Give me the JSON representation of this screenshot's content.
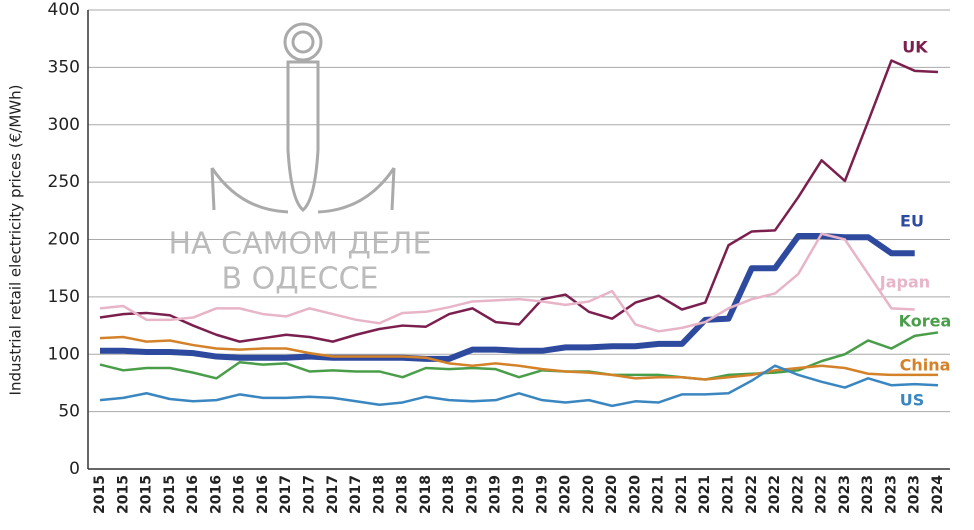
{
  "chart_data": {
    "type": "line",
    "y_axis_label": "Industrial retail electricity prices (€/MWh)",
    "watermark": [
      "НА САМОМ ДЕЛЕ",
      "В ОДЕССЕ"
    ],
    "categories": [
      "2015",
      "2015",
      "2015",
      "2015",
      "2016",
      "2016",
      "2016",
      "2016",
      "2017",
      "2017",
      "2017",
      "2017",
      "2018",
      "2018",
      "2018",
      "2018",
      "2019",
      "2019",
      "2019",
      "2019",
      "2020",
      "2020",
      "2020",
      "2020",
      "2021",
      "2021",
      "2021",
      "2021",
      "2022",
      "2022",
      "2022",
      "2022",
      "2023",
      "2023",
      "2023",
      "2023",
      "2024"
    ],
    "ylim": [
      0,
      400
    ],
    "yticks": [
      0,
      50,
      100,
      150,
      200,
      250,
      300,
      350,
      400
    ],
    "grid": true,
    "series": [
      {
        "name": "UK",
        "color": "#7b1f4e",
        "values": [
          132,
          135,
          136,
          134,
          125,
          117,
          111,
          114,
          117,
          115,
          111,
          117,
          122,
          125,
          124,
          135,
          140,
          128,
          126,
          148,
          152,
          137,
          131,
          145,
          151,
          139,
          145,
          195,
          207,
          208,
          237,
          269,
          251,
          303,
          356,
          347,
          346
        ]
      },
      {
        "name": "EU",
        "color": "#2e4a9e",
        "highlight": true,
        "values": [
          103,
          103,
          102,
          102,
          101,
          98,
          97,
          97,
          97,
          98,
          97,
          97,
          97,
          97,
          96,
          96,
          104,
          104,
          103,
          103,
          106,
          106,
          107,
          107,
          109,
          109,
          130,
          131,
          175,
          175,
          203,
          203,
          202,
          202,
          188,
          188,
          null
        ]
      },
      {
        "name": "Japan",
        "color": "#e8b4c8",
        "values": [
          140,
          142,
          130,
          130,
          132,
          140,
          140,
          135,
          133,
          140,
          135,
          130,
          127,
          136,
          137,
          141,
          146,
          147,
          148,
          146,
          143,
          146,
          155,
          126,
          120,
          123,
          128,
          140,
          148,
          153,
          170,
          205,
          200,
          170,
          140,
          139,
          null
        ]
      },
      {
        "name": "Korea",
        "color": "#4a9e4a",
        "values": [
          91,
          86,
          88,
          88,
          84,
          79,
          93,
          91,
          92,
          85,
          86,
          85,
          85,
          80,
          88,
          87,
          88,
          87,
          80,
          86,
          85,
          85,
          82,
          82,
          82,
          80,
          78,
          82,
          83,
          84,
          86,
          94,
          100,
          112,
          105,
          116,
          119
        ]
      },
      {
        "name": "China",
        "color": "#d4822a",
        "values": [
          114,
          115,
          111,
          112,
          108,
          105,
          104,
          105,
          105,
          101,
          98,
          98,
          98,
          98,
          97,
          92,
          90,
          92,
          90,
          87,
          85,
          84,
          82,
          79,
          80,
          80,
          78,
          80,
          82,
          86,
          88,
          90,
          88,
          83,
          82,
          82,
          82
        ]
      },
      {
        "name": "US",
        "color": "#3a86c0",
        "values": [
          60,
          62,
          66,
          61,
          59,
          60,
          65,
          62,
          62,
          63,
          62,
          59,
          56,
          58,
          63,
          60,
          59,
          60,
          66,
          60,
          58,
          60,
          55,
          59,
          58,
          65,
          65,
          66,
          77,
          90,
          82,
          76,
          71,
          79,
          73,
          74,
          73
        ]
      }
    ]
  }
}
